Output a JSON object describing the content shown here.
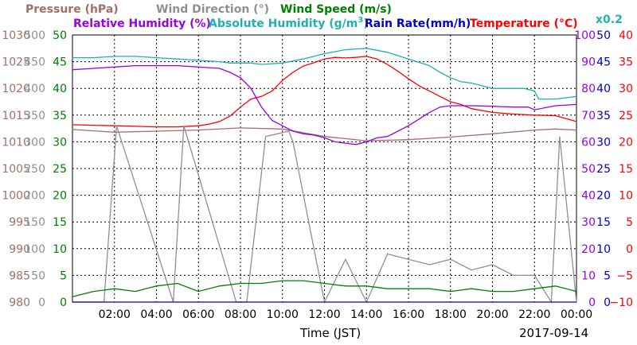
{
  "chart_data": {
    "type": "line",
    "legend": {
      "pressure": {
        "label": "Pressure (hPa)",
        "color": "#a0706a"
      },
      "wind_direction": {
        "label": "Wind Direction (°)",
        "color": "#909090"
      },
      "wind_speed": {
        "label": "Wind Speed (m/s)",
        "color": "#008000"
      },
      "relative_humidity": {
        "label": "Relative Humidity (%)",
        "color": "#9900ee"
      },
      "absolute_humidity": {
        "label": "Absolute Humidity (g/m",
        "sup": "3",
        "close": ")",
        "color": "#20b0b0"
      },
      "rain_rate": {
        "label": "Rain Rate(mm/h)",
        "color": "#0000cc"
      },
      "temperature": {
        "label": "Temperature (°C)",
        "color": "#ff0000"
      },
      "abs_humidity_scale_note": "x0.2"
    },
    "xlabel": "Time (JST)",
    "date_label": "2017-09-14",
    "x_ticks": [
      "02:00",
      "04:00",
      "06:00",
      "08:00",
      "10:00",
      "12:00",
      "14:00",
      "16:00",
      "18:00",
      "20:00",
      "22:00",
      "00:00"
    ],
    "x_range_hours": [
      0,
      24
    ],
    "axes": {
      "pressure": {
        "ticks": [
          "1030",
          "1025",
          "1020",
          "1015",
          "1010",
          "1005",
          "1000",
          "995",
          "990",
          "985",
          "980"
        ],
        "range": [
          980,
          1030
        ]
      },
      "wind_direction": {
        "ticks": [
          "500",
          "450",
          "400",
          "350",
          "300",
          "250",
          "200",
          "150",
          "100",
          "50",
          "0"
        ],
        "range": [
          0,
          500
        ]
      },
      "wind_speed": {
        "ticks": [
          "50",
          "45",
          "40",
          "35",
          "30",
          "25",
          "20",
          "15",
          "10",
          "5",
          "0"
        ],
        "range": [
          0,
          50
        ]
      },
      "humidity": {
        "ticks": [
          "100",
          "90",
          "80",
          "70",
          "60",
          "50",
          "40",
          "30",
          "20",
          "10",
          "0"
        ],
        "range": [
          0,
          100
        ]
      },
      "rain_rate": {
        "ticks": [
          "50",
          "45",
          "40",
          "35",
          "30",
          "25",
          "20",
          "15",
          "10",
          "5",
          "0"
        ],
        "range": [
          0,
          50
        ]
      },
      "temperature": {
        "ticks": [
          "40",
          "35",
          "30",
          "25",
          "20",
          "15",
          "10",
          "5",
          "0",
          "−5",
          "−10"
        ],
        "range": [
          -10,
          40
        ]
      }
    },
    "grid": true,
    "series": [
      {
        "name": "Temperature (°C)",
        "axis": "temperature",
        "color": "#ff0000",
        "x": [
          0,
          1,
          2,
          3,
          4,
          5,
          6,
          6.5,
          7,
          7.5,
          8,
          8.5,
          9,
          9.5,
          10,
          10.5,
          11,
          11.5,
          12,
          12.5,
          13,
          13.5,
          14,
          14.5,
          15,
          15.5,
          16,
          16.5,
          17,
          17.5,
          18,
          18.5,
          19,
          20,
          21,
          22,
          23,
          24
        ],
        "y": [
          23.2,
          23.1,
          23.0,
          22.9,
          22.8,
          22.8,
          23.0,
          23.3,
          23.8,
          24.8,
          26.5,
          28.0,
          28.5,
          29.5,
          31.5,
          33.0,
          34.2,
          34.8,
          35.5,
          35.8,
          35.7,
          35.8,
          36.0,
          35.5,
          34.5,
          33.2,
          31.8,
          30.5,
          29.5,
          28.5,
          27.5,
          27.0,
          26.2,
          25.5,
          25.2,
          25.0,
          24.9,
          23.8
        ]
      },
      {
        "name": "Pressure (hPa)",
        "axis": "pressure",
        "color": "#a0706a",
        "x": [
          0,
          2,
          4,
          6,
          8,
          10,
          12,
          14,
          16,
          18,
          20,
          22,
          23,
          24
        ],
        "y": [
          1012.3,
          1011.8,
          1012.0,
          1012.2,
          1012.6,
          1012.4,
          1011.0,
          1010.2,
          1010.4,
          1010.9,
          1011.5,
          1012.2,
          1012.4,
          1012.2
        ]
      },
      {
        "name": "Relative Humidity (%)",
        "axis": "humidity",
        "color": "#9900ee",
        "x": [
          0,
          1,
          2,
          3,
          4,
          5,
          6,
          7,
          7.5,
          8,
          8.5,
          9,
          9.5,
          10,
          10.5,
          11,
          11.5,
          12,
          12.5,
          13,
          13.5,
          14,
          14.5,
          15,
          15.5,
          16,
          16.5,
          17,
          17.5,
          18,
          19,
          20,
          21,
          21.7,
          22,
          23,
          24
        ],
        "y": [
          87,
          87.5,
          88,
          88.5,
          88.5,
          88.5,
          88,
          87.5,
          86,
          84,
          80,
          73,
          68,
          66,
          64,
          63,
          62.5,
          61.5,
          60,
          59.5,
          59,
          60,
          61.5,
          62,
          64,
          66,
          68.5,
          71,
          73,
          73.5,
          73.5,
          73.3,
          73,
          73,
          72,
          73.5,
          74
        ]
      },
      {
        "name": "Absolute Humidity (g/m3) x0.2",
        "axis": "humidity",
        "color": "#20b0b0",
        "x": [
          0,
          1,
          2,
          3,
          4,
          5,
          6,
          7,
          7.5,
          8,
          8.5,
          9,
          10,
          11,
          12,
          13,
          14,
          15,
          16,
          17,
          17.5,
          18,
          18.5,
          19,
          20,
          21,
          21.5,
          22,
          22.2,
          23,
          24
        ],
        "y": [
          91.5,
          91.5,
          92,
          92,
          91.5,
          91,
          90.5,
          90,
          89.5,
          89.5,
          89.5,
          89,
          89.5,
          91,
          93,
          94.5,
          95,
          93.5,
          91,
          88.5,
          86,
          84,
          82.5,
          82,
          80,
          80,
          80,
          79,
          76,
          76,
          77
        ]
      },
      {
        "name": "Wind Direction (°)",
        "axis": "wind_direction",
        "color": "#909090",
        "x": [
          0,
          1.5,
          2.1,
          4.8,
          5.3,
          7.8,
          8.3,
          9.2,
          10.3,
          10.5,
          12,
          13,
          14,
          15,
          16,
          17,
          18,
          19,
          20,
          21,
          21.7,
          22,
          22.8,
          23.2,
          24
        ],
        "y": [
          0,
          0,
          330,
          0,
          330,
          0,
          0,
          310,
          320,
          300,
          0,
          80,
          0,
          90,
          80,
          70,
          80,
          60,
          70,
          50,
          50,
          50,
          0,
          310,
          0
        ]
      },
      {
        "name": "Wind Speed (m/s)",
        "axis": "wind_speed",
        "color": "#008000",
        "x": [
          0,
          1,
          2,
          3,
          4,
          5,
          6,
          7,
          8,
          9,
          10,
          11,
          12,
          13,
          14,
          15,
          16,
          17,
          18,
          19,
          20,
          21,
          22,
          23,
          24
        ],
        "y": [
          1.0,
          2.0,
          2.5,
          2.0,
          3.0,
          3.5,
          2.0,
          3.0,
          3.5,
          3.5,
          4.0,
          4.0,
          3.5,
          3.0,
          3.0,
          2.5,
          2.5,
          2.5,
          2.0,
          2.5,
          2.0,
          2.0,
          2.5,
          3.0,
          2.0
        ]
      },
      {
        "name": "Rain Rate(mm/h)",
        "axis": "rain_rate",
        "color": "#0000cc",
        "x": [
          0,
          24
        ],
        "y": [
          0,
          0
        ]
      }
    ]
  }
}
